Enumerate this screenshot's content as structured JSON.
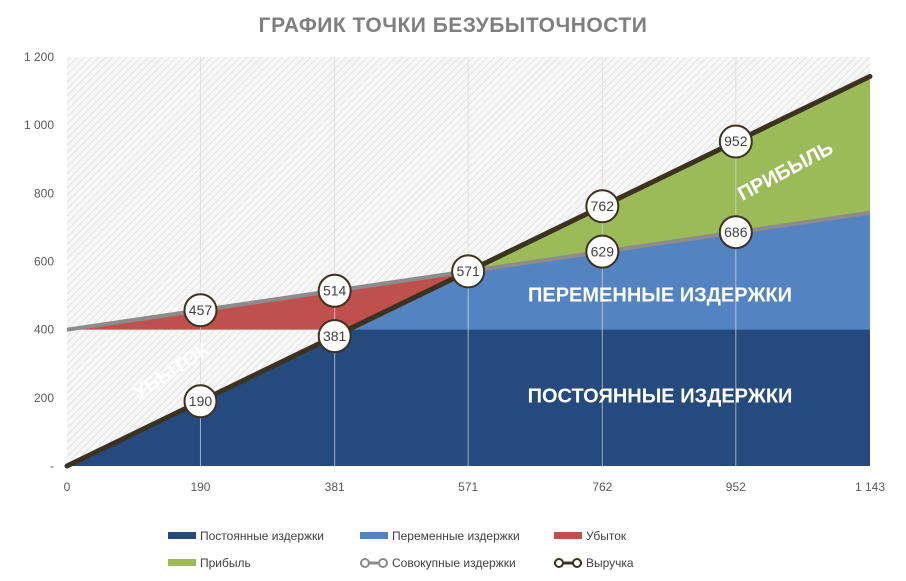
{
  "chart_data": {
    "type": "area",
    "title": "ГРАФИК ТОЧКИ БЕЗУБЫТОЧНОСТИ",
    "x_ticks": [
      "0",
      "190",
      "381",
      "571",
      "762",
      "952",
      "1 143"
    ],
    "y_ticks": [
      "-",
      "200",
      "400",
      "600",
      "800",
      "1 000",
      "1 200"
    ],
    "xlim": [
      0,
      1143
    ],
    "ylim": [
      0,
      1200
    ],
    "grid": "vertical",
    "legend_position": "bottom",
    "fixed_costs": 400,
    "series": [
      {
        "name": "Постоянные издержки",
        "color": "#254a7d",
        "x": [
          0,
          1143
        ],
        "y": [
          400,
          400
        ]
      },
      {
        "name": "Переменные издержки",
        "color": "#5483c2",
        "x": [
          0,
          1143
        ],
        "y": [
          0,
          343
        ]
      },
      {
        "name": "Совокупные издержки",
        "color": "#8c8c8c",
        "x": [
          0,
          1143
        ],
        "y": [
          400,
          743
        ]
      },
      {
        "name": "Выручка",
        "color": "#3a3320",
        "x": [
          0,
          1143
        ],
        "y": [
          0,
          1143
        ]
      },
      {
        "name": "Убыток",
        "color": "#c0504d"
      },
      {
        "name": "Прибыль",
        "color": "#9bbb59"
      }
    ],
    "point_labels": [
      {
        "x": 190,
        "y": 190,
        "label": "190"
      },
      {
        "x": 381,
        "y": 381,
        "label": "381"
      },
      {
        "x": 571,
        "y": 571,
        "label": "571"
      },
      {
        "x": 762,
        "y": 762,
        "label": "762"
      },
      {
        "x": 952,
        "y": 952,
        "label": "952"
      },
      {
        "x": 190,
        "y": 457,
        "label": "457"
      },
      {
        "x": 381,
        "y": 514,
        "label": "514"
      },
      {
        "x": 762,
        "y": 629,
        "label": "629"
      },
      {
        "x": 952,
        "y": 686,
        "label": "686"
      }
    ],
    "region_labels": {
      "loss": "УБЫТОК",
      "profit": "ПРИБЫЛЬ",
      "variable": "ПЕРЕМЕННЫЕ ИЗДЕРЖКИ",
      "fixed": "ПОСТОЯННЫЕ ИЗДЕРЖКИ"
    },
    "legend": [
      {
        "label": "Постоянные издержки",
        "color": "#254a7d",
        "kind": "area"
      },
      {
        "label": "Переменные издержки",
        "color": "#5483c2",
        "kind": "area"
      },
      {
        "label": "Убыток",
        "color": "#c0504d",
        "kind": "area"
      },
      {
        "label": "Прибыль",
        "color": "#9bbb59",
        "kind": "area"
      },
      {
        "label": "Совокупные издержки",
        "color": "#8c8c8c",
        "kind": "line"
      },
      {
        "label": "Выручка",
        "color": "#3a3320",
        "kind": "line"
      }
    ]
  }
}
